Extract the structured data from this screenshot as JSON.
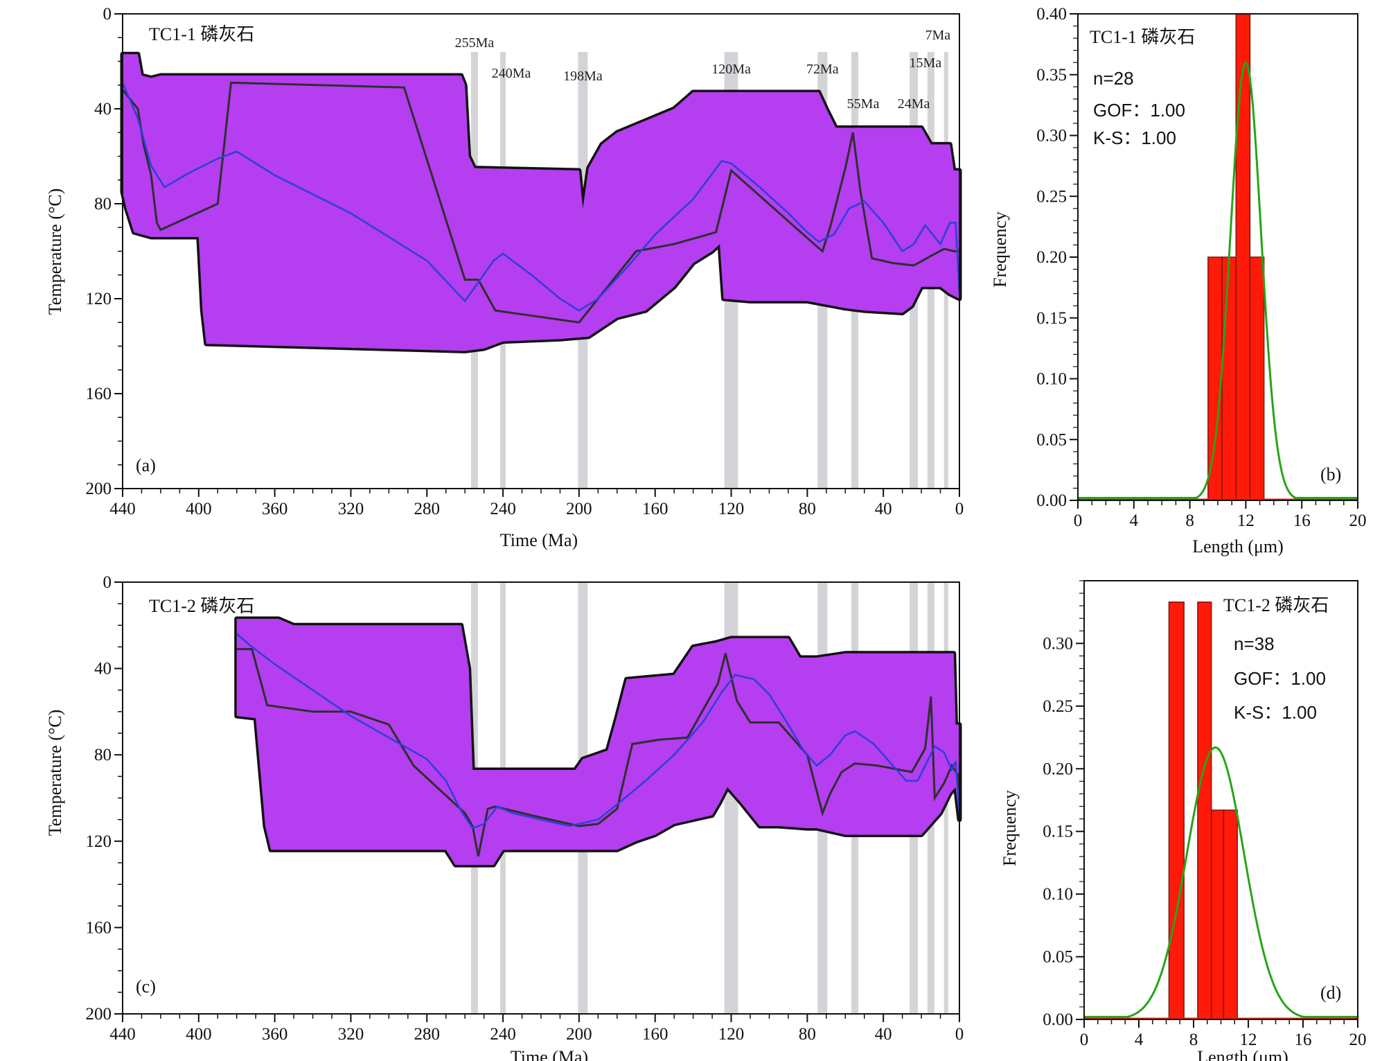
{
  "chart_data": [
    {
      "panel": "a",
      "type": "area",
      "title": "TC1-1  磷灰石",
      "panel_letter": "(a)",
      "xlabel": "Time (Ma)",
      "ylabel": "Temperature (°C)",
      "xlim": [
        440,
        0
      ],
      "ylim": [
        0,
        200
      ],
      "xticks": [
        440,
        400,
        360,
        320,
        280,
        240,
        200,
        160,
        120,
        80,
        40,
        0
      ],
      "yticks": [
        0,
        40,
        80,
        120,
        160,
        200
      ],
      "event_bands": [
        {
          "label": "255Ma",
          "time": 255
        },
        {
          "label": "240Ma",
          "time": 240
        },
        {
          "label": "198Ma",
          "time": 198
        },
        {
          "label": "120Ma",
          "time": 120
        },
        {
          "label": "72Ma",
          "time": 72
        },
        {
          "label": "55Ma",
          "time": 55
        },
        {
          "label": "24Ma",
          "time": 24
        },
        {
          "label": "15Ma",
          "time": 15
        },
        {
          "label": "7Ma",
          "time": 7
        }
      ],
      "good_fit_envelope": {
        "color": "#b43ef0",
        "upper": [
          [
            440,
            17
          ],
          [
            432,
            17
          ],
          [
            430,
            26
          ],
          [
            425,
            27
          ],
          [
            420,
            26
          ],
          [
            350,
            26
          ],
          [
            262,
            26
          ],
          [
            260,
            30
          ],
          [
            258,
            60
          ],
          [
            255,
            65
          ],
          [
            200,
            66
          ],
          [
            198,
            82
          ],
          [
            195,
            65
          ],
          [
            188,
            55
          ],
          [
            180,
            50
          ],
          [
            165,
            45
          ],
          [
            150,
            40
          ],
          [
            140,
            33
          ],
          [
            74,
            33
          ],
          [
            70,
            40
          ],
          [
            65,
            48
          ],
          [
            20,
            48
          ],
          [
            15,
            55
          ],
          [
            5,
            55
          ],
          [
            3,
            66
          ],
          [
            0,
            66
          ]
        ],
        "lower": [
          [
            440,
            75
          ],
          [
            438,
            82
          ],
          [
            434,
            92
          ],
          [
            425,
            94
          ],
          [
            400,
            94
          ],
          [
            398,
            125
          ],
          [
            396,
            139
          ],
          [
            260,
            142
          ],
          [
            250,
            141
          ],
          [
            240,
            138
          ],
          [
            210,
            137
          ],
          [
            195,
            136
          ],
          [
            180,
            128
          ],
          [
            165,
            125
          ],
          [
            150,
            115
          ],
          [
            140,
            105
          ],
          [
            130,
            100
          ],
          [
            126,
            97
          ],
          [
            124,
            120
          ],
          [
            110,
            121
          ],
          [
            90,
            121
          ],
          [
            80,
            121
          ],
          [
            60,
            124
          ],
          [
            50,
            125
          ],
          [
            30,
            126
          ],
          [
            25,
            123
          ],
          [
            20,
            115
          ],
          [
            10,
            115
          ],
          [
            5,
            118
          ],
          [
            0,
            120
          ]
        ]
      },
      "acceptable_fit_envelope": {
        "color": "#6ee41c"
      },
      "best_fit_path": {
        "color": "#2f2f2f",
        "points": [
          [
            440,
            32
          ],
          [
            432,
            40
          ],
          [
            429,
            55
          ],
          [
            425,
            68
          ],
          [
            422,
            88
          ],
          [
            420,
            91
          ],
          [
            390,
            80
          ],
          [
            383,
            29
          ],
          [
            292,
            31
          ],
          [
            260,
            112
          ],
          [
            253,
            112
          ],
          [
            244,
            125
          ],
          [
            200,
            130
          ],
          [
            180,
            110
          ],
          [
            170,
            100
          ],
          [
            150,
            97
          ],
          [
            128,
            92
          ],
          [
            120,
            66
          ],
          [
            75,
            98
          ],
          [
            72,
            100
          ],
          [
            68,
            90
          ],
          [
            60,
            65
          ],
          [
            56,
            50
          ],
          [
            52,
            75
          ],
          [
            46,
            103
          ],
          [
            35,
            105
          ],
          [
            24,
            106
          ],
          [
            15,
            102
          ],
          [
            8,
            99
          ],
          [
            3,
            100
          ],
          [
            0,
            100
          ]
        ]
      },
      "weighted_mean_path": {
        "color": "#2c40d8",
        "points": [
          [
            440,
            29
          ],
          [
            432,
            44
          ],
          [
            425,
            64
          ],
          [
            418,
            73
          ],
          [
            405,
            67
          ],
          [
            390,
            61
          ],
          [
            380,
            58
          ],
          [
            360,
            68
          ],
          [
            320,
            84
          ],
          [
            280,
            104
          ],
          [
            260,
            121
          ],
          [
            252,
            112
          ],
          [
            245,
            104
          ],
          [
            240,
            101
          ],
          [
            225,
            110
          ],
          [
            210,
            120
          ],
          [
            200,
            125
          ],
          [
            190,
            120
          ],
          [
            175,
            107
          ],
          [
            160,
            93
          ],
          [
            140,
            78
          ],
          [
            125,
            62
          ],
          [
            120,
            63
          ],
          [
            105,
            73
          ],
          [
            90,
            84
          ],
          [
            80,
            92
          ],
          [
            74,
            96
          ],
          [
            66,
            93
          ],
          [
            58,
            82
          ],
          [
            50,
            79
          ],
          [
            40,
            88
          ],
          [
            30,
            100
          ],
          [
            24,
            97
          ],
          [
            18,
            89
          ],
          [
            10,
            97
          ],
          [
            5,
            88
          ],
          [
            2,
            88
          ],
          [
            0,
            118
          ]
        ]
      }
    },
    {
      "panel": "b",
      "type": "bar",
      "title": "TC1-1  磷灰石",
      "panel_letter": "(b)",
      "xlabel": "Length (μm)",
      "ylabel": "Frequency",
      "xlim": [
        0,
        20
      ],
      "ylim": [
        0,
        0.4
      ],
      "xticks": [
        0,
        4,
        8,
        12,
        16,
        20
      ],
      "yticks": [
        "0.00",
        "0.05",
        "0.10",
        "0.15",
        "0.20",
        "0.25",
        "0.30",
        "0.35",
        "0.40"
      ],
      "stats": {
        "n": "n=28",
        "gof": "GOF：1.00",
        "ks": "K-S：1.00"
      },
      "bins": [
        {
          "x0": 9.3,
          "x1": 10.3,
          "value": 0.2
        },
        {
          "x0": 10.3,
          "x1": 11.3,
          "value": 0.2
        },
        {
          "x0": 11.3,
          "x1": 12.3,
          "value": 0.4
        },
        {
          "x0": 12.3,
          "x1": 13.3,
          "value": 0.2
        }
      ],
      "fit_curve": {
        "color": "#27a417",
        "mean": 12.0,
        "sd": 1.1,
        "peak": 0.36,
        "baseline": 0.0
      }
    },
    {
      "panel": "c",
      "type": "area",
      "title": "TC1-2  磷灰石",
      "panel_letter": "(c)",
      "xlabel": "Time (Ma)",
      "ylabel": "Temperature (°C)",
      "xlim": [
        440,
        0
      ],
      "ylim": [
        0,
        200
      ],
      "xticks": [
        440,
        400,
        360,
        320,
        280,
        240,
        200,
        160,
        120,
        80,
        40,
        0
      ],
      "yticks": [
        0,
        40,
        80,
        120,
        160,
        200
      ],
      "event_bands_times": [
        255,
        240,
        198,
        120,
        72,
        55,
        24,
        15,
        7
      ],
      "good_fit_envelope": {
        "color": "#b43ef0",
        "upper": [
          [
            380,
            17
          ],
          [
            358,
            17
          ],
          [
            350,
            20
          ],
          [
            262,
            20
          ],
          [
            258,
            40
          ],
          [
            256,
            87
          ],
          [
            202,
            87
          ],
          [
            198,
            82
          ],
          [
            185,
            78
          ],
          [
            180,
            62
          ],
          [
            175,
            45
          ],
          [
            150,
            43
          ],
          [
            140,
            30
          ],
          [
            128,
            28
          ],
          [
            120,
            26
          ],
          [
            90,
            26
          ],
          [
            84,
            35
          ],
          [
            75,
            35
          ],
          [
            60,
            33
          ],
          [
            10,
            33
          ],
          [
            3,
            33
          ],
          [
            2,
            66
          ],
          [
            0,
            66
          ]
        ],
        "lower": [
          [
            380,
            62
          ],
          [
            370,
            63
          ],
          [
            365,
            113
          ],
          [
            362,
            124
          ],
          [
            270,
            124
          ],
          [
            265,
            131
          ],
          [
            245,
            131
          ],
          [
            240,
            124
          ],
          [
            220,
            124
          ],
          [
            210,
            124
          ],
          [
            180,
            124
          ],
          [
            170,
            120
          ],
          [
            160,
            117
          ],
          [
            150,
            112
          ],
          [
            130,
            108
          ],
          [
            126,
            102
          ],
          [
            122,
            95
          ],
          [
            115,
            102
          ],
          [
            105,
            113
          ],
          [
            95,
            113
          ],
          [
            80,
            114
          ],
          [
            75,
            114
          ],
          [
            60,
            117
          ],
          [
            20,
            117
          ],
          [
            10,
            107
          ],
          [
            5,
            98
          ],
          [
            2,
            95
          ],
          [
            0,
            110
          ]
        ]
      },
      "acceptable_fit_envelope": {
        "color": "#6ee41c"
      },
      "best_fit_path": {
        "color": "#2f2f2f",
        "points": [
          [
            380,
            31
          ],
          [
            372,
            31
          ],
          [
            364,
            57
          ],
          [
            340,
            60
          ],
          [
            320,
            60
          ],
          [
            300,
            66
          ],
          [
            287,
            85
          ],
          [
            260,
            107
          ],
          [
            256,
            113
          ],
          [
            253,
            127
          ],
          [
            248,
            105
          ],
          [
            244,
            104
          ],
          [
            225,
            108
          ],
          [
            200,
            113
          ],
          [
            190,
            112
          ],
          [
            180,
            105
          ],
          [
            172,
            75
          ],
          [
            158,
            73
          ],
          [
            143,
            72
          ],
          [
            127,
            47
          ],
          [
            123,
            33
          ],
          [
            117,
            55
          ],
          [
            110,
            65
          ],
          [
            95,
            65
          ],
          [
            80,
            80
          ],
          [
            72,
            107
          ],
          [
            68,
            98
          ],
          [
            62,
            88
          ],
          [
            55,
            84
          ],
          [
            43,
            85
          ],
          [
            25,
            88
          ],
          [
            18,
            77
          ],
          [
            15,
            53
          ],
          [
            13,
            100
          ],
          [
            8,
            93
          ],
          [
            4,
            85
          ],
          [
            1,
            89
          ],
          [
            0,
            96
          ]
        ]
      },
      "weighted_mean_path": {
        "color": "#2c40d8",
        "points": [
          [
            380,
            24
          ],
          [
            372,
            30
          ],
          [
            360,
            38
          ],
          [
            340,
            50
          ],
          [
            320,
            62
          ],
          [
            300,
            72
          ],
          [
            280,
            82
          ],
          [
            270,
            92
          ],
          [
            262,
            106
          ],
          [
            256,
            114
          ],
          [
            250,
            112
          ],
          [
            243,
            104
          ],
          [
            235,
            107
          ],
          [
            220,
            110
          ],
          [
            205,
            113
          ],
          [
            190,
            110
          ],
          [
            180,
            103
          ],
          [
            165,
            92
          ],
          [
            150,
            80
          ],
          [
            135,
            65
          ],
          [
            125,
            51
          ],
          [
            118,
            43
          ],
          [
            108,
            45
          ],
          [
            100,
            52
          ],
          [
            90,
            66
          ],
          [
            82,
            78
          ],
          [
            75,
            85
          ],
          [
            68,
            80
          ],
          [
            60,
            71
          ],
          [
            55,
            69
          ],
          [
            45,
            75
          ],
          [
            35,
            85
          ],
          [
            28,
            92
          ],
          [
            22,
            92
          ],
          [
            18,
            85
          ],
          [
            13,
            76
          ],
          [
            8,
            79
          ],
          [
            4,
            87
          ],
          [
            2,
            83
          ],
          [
            0,
            107
          ]
        ]
      }
    },
    {
      "panel": "d",
      "type": "bar",
      "title": "TC1-2  磷灰石",
      "panel_letter": "(d)",
      "xlabel": "Length (μm)",
      "ylabel": "Frequency",
      "xlim": [
        0,
        20
      ],
      "ylim": [
        0,
        0.35
      ],
      "xticks": [
        0,
        4,
        8,
        12,
        16,
        20
      ],
      "yticks": [
        "0.00",
        "0.05",
        "0.10",
        "0.15",
        "0.20",
        "0.25",
        "0.30"
      ],
      "stats": {
        "n": "n=38",
        "gof": "GOF：1.00",
        "ks": "K-S：1.00"
      },
      "bins": [
        {
          "x0": 6.2,
          "x1": 7.3,
          "value": 0.333
        },
        {
          "x0": 8.3,
          "x1": 9.3,
          "value": 0.333
        },
        {
          "x0": 9.3,
          "x1": 10.2,
          "value": 0.167
        },
        {
          "x0": 10.2,
          "x1": 11.2,
          "value": 0.167
        }
      ],
      "fit_curve": {
        "color": "#27a417",
        "mean": 9.6,
        "sd": 2.1,
        "peak": 0.217,
        "baseline": 0.0,
        "start_x": 2.2
      }
    }
  ]
}
